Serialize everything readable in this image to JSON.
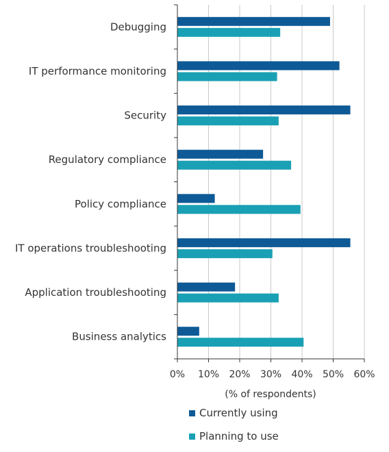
{
  "chart_data": {
    "type": "bar",
    "orientation": "horizontal",
    "categories": [
      "Debugging",
      "IT performance monitoring",
      "Security",
      "Regulatory compliance",
      "Policy compliance",
      "IT operations troubleshooting",
      "Application troubleshooting",
      "Business analytics"
    ],
    "series": [
      {
        "name": "Currently using",
        "color": "#0e5a96",
        "values": [
          49,
          52,
          55.5,
          27.5,
          12,
          55.5,
          18.5,
          7
        ]
      },
      {
        "name": "Planning to use",
        "color": "#1aa0b4",
        "values": [
          33,
          32,
          32.5,
          36.5,
          39.5,
          30.5,
          32.5,
          40.5
        ]
      }
    ],
    "xlabel": "(% of respondents)",
    "xlim": [
      0,
      60
    ],
    "xticks": [
      "0%",
      "10%",
      "20%",
      "30%",
      "40%",
      "50%",
      "60%"
    ],
    "grid": true,
    "legend": "bottom"
  }
}
